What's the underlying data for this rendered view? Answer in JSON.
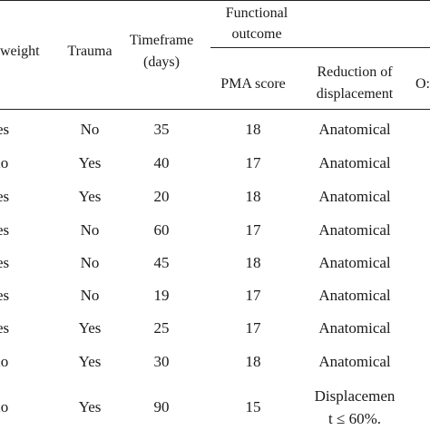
{
  "table": {
    "headers": {
      "weight": "weight",
      "trauma": "Trauma",
      "timeframe_line1": "Timeframe",
      "timeframe_line2": "(days)",
      "functional_line1": "Functional",
      "functional_line2": "outcome",
      "pma": "PMA score",
      "reduction_line1": "Reduction of",
      "reduction_line2": "displacement",
      "partial_next": "O:"
    },
    "rows": [
      {
        "weight": "es",
        "trauma": "No",
        "days": "35",
        "pma": "18",
        "reduction": "Anatomical"
      },
      {
        "weight": "lo",
        "trauma": "Yes",
        "days": "40",
        "pma": "17",
        "reduction": "Anatomical"
      },
      {
        "weight": "es",
        "trauma": "Yes",
        "days": "20",
        "pma": "18",
        "reduction": "Anatomical"
      },
      {
        "weight": "es",
        "trauma": "No",
        "days": "60",
        "pma": "17",
        "reduction": "Anatomical"
      },
      {
        "weight": "es",
        "trauma": "No",
        "days": "45",
        "pma": "18",
        "reduction": "Anatomical"
      },
      {
        "weight": "es",
        "trauma": "No",
        "days": "19",
        "pma": "17",
        "reduction": "Anatomical"
      },
      {
        "weight": "es",
        "trauma": "Yes",
        "days": "25",
        "pma": "17",
        "reduction": "Anatomical"
      },
      {
        "weight": "lo",
        "trauma": "Yes",
        "days": "30",
        "pma": "18",
        "reduction": "Anatomical"
      },
      {
        "weight": "lo",
        "trauma": "Yes",
        "days": "90",
        "pma": "15",
        "reduction": "Displacemen",
        "reduction_line2": "t ≤ 60%."
      }
    ]
  }
}
